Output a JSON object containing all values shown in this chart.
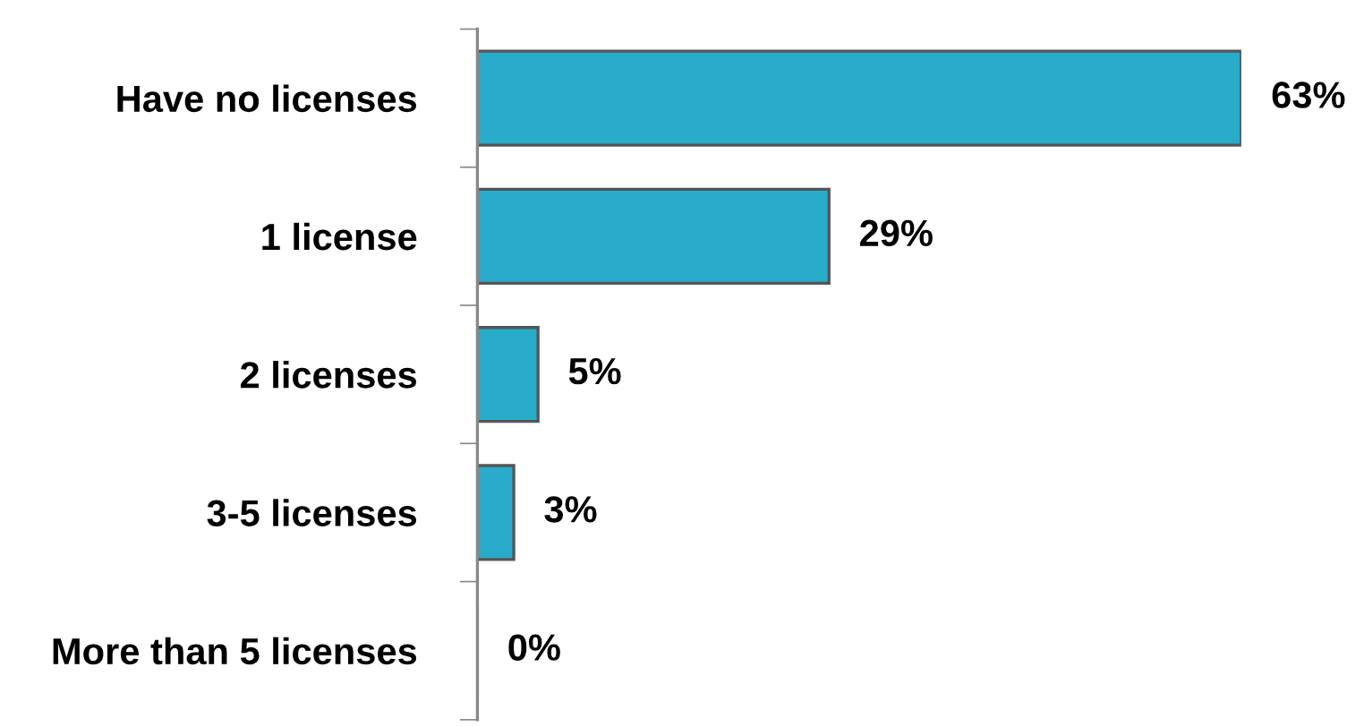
{
  "chart_data": {
    "type": "bar",
    "orientation": "horizontal",
    "categories": [
      "Have no licenses",
      "1 license",
      "2 licenses",
      "3-5 licenses",
      "More than 5 licenses"
    ],
    "values": [
      63,
      29,
      5,
      3,
      0
    ],
    "value_labels": [
      "63%",
      "29%",
      "5%",
      "3%",
      "0%"
    ],
    "color": "#29abca",
    "grid": false,
    "legend": false
  }
}
